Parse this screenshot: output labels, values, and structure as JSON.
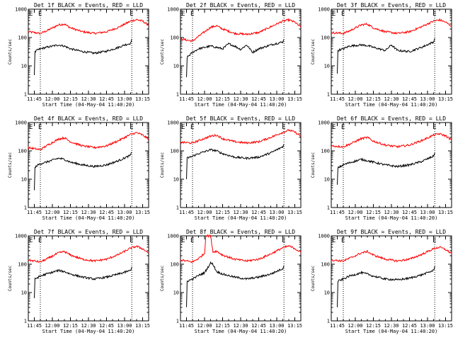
{
  "chart_data": [
    {
      "type": "line",
      "title": "Det 1f BLACK = Events, RED = LLD",
      "xlabel": "Start Time (04-May-04 11:40:20)",
      "ylabel": "Counts/sec",
      "x_tick_labels": [
        "11:45",
        "12:00",
        "12:15",
        "12:30",
        "12:45",
        "13:00",
        "13:15"
      ],
      "y_tick_labels": [
        "1",
        "10",
        "100",
        "1000"
      ],
      "y_scale": "log",
      "ylim": [
        1,
        1000
      ],
      "xlim_minutes": [
        -5,
        95
      ],
      "markers": [
        {
          "label": "E",
          "x": 5
        },
        {
          "label": "E",
          "x": 81
        }
      ],
      "series": [
        {
          "color": "#ff0000",
          "x": [
            -5,
            5,
            10,
            20,
            25,
            30,
            40,
            50,
            60,
            70,
            80,
            85,
            90,
            95
          ],
          "values": [
            160,
            140,
            170,
            280,
            300,
            220,
            160,
            140,
            160,
            230,
            380,
            430,
            380,
            270
          ]
        },
        {
          "color": "#000000",
          "x": [
            0,
            0.5,
            2,
            5,
            10,
            20,
            25,
            30,
            40,
            50,
            60,
            70,
            75,
            80,
            81
          ],
          "values": [
            5,
            30,
            35,
            40,
            45,
            55,
            50,
            40,
            32,
            28,
            33,
            45,
            55,
            62,
            90
          ]
        }
      ]
    },
    {
      "type": "line",
      "title": "Det 2f BLACK = Events, RED = LLD",
      "xlabel": "Start Time (04-May-04 11:40:20)",
      "ylabel": "Counts/sec",
      "x_tick_labels": [
        "11:45",
        "12:00",
        "12:15",
        "12:30",
        "12:45",
        "13:00",
        "13:15"
      ],
      "y_tick_labels": [
        "1",
        "10",
        "100",
        "1000"
      ],
      "y_scale": "log",
      "ylim": [
        1,
        1000
      ],
      "xlim_minutes": [
        -5,
        95
      ],
      "markers": [
        {
          "label": "E",
          "x": 5
        },
        {
          "label": "E",
          "x": 81
        }
      ],
      "series": [
        {
          "color": "#ff0000",
          "x": [
            -5,
            5,
            10,
            20,
            25,
            30,
            40,
            50,
            60,
            70,
            80,
            85,
            90,
            95
          ],
          "values": [
            90,
            75,
            110,
            230,
            260,
            200,
            140,
            130,
            150,
            240,
            380,
            420,
            350,
            230
          ]
        },
        {
          "color": "#000000",
          "x": [
            0,
            0.5,
            5,
            10,
            20,
            25,
            30,
            35,
            40,
            45,
            50,
            55,
            60,
            70,
            80,
            81
          ],
          "values": [
            4,
            20,
            30,
            40,
            50,
            45,
            40,
            60,
            50,
            38,
            55,
            30,
            40,
            55,
            70,
            85
          ]
        }
      ]
    },
    {
      "type": "line",
      "title": "Det 3f BLACK = Events, RED = LLD",
      "xlabel": "Start Time (04-May-04 11:40:20)",
      "ylabel": "Counts/sec",
      "x_tick_labels": [
        "11:45",
        "12:00",
        "12:15",
        "12:30",
        "12:45",
        "13:00",
        "13:15"
      ],
      "y_tick_labels": [
        "1",
        "10",
        "100",
        "1000"
      ],
      "y_scale": "log",
      "ylim": [
        1,
        1000
      ],
      "xlim_minutes": [
        -5,
        95
      ],
      "markers": [
        {
          "label": "E",
          "x": 5
        },
        {
          "label": "E",
          "x": 81
        }
      ],
      "series": [
        {
          "color": "#ff0000",
          "x": [
            -5,
            5,
            10,
            20,
            25,
            30,
            40,
            50,
            60,
            70,
            80,
            85,
            90,
            95
          ],
          "values": [
            150,
            140,
            170,
            280,
            300,
            220,
            160,
            140,
            160,
            240,
            380,
            420,
            350,
            250
          ]
        },
        {
          "color": "#000000",
          "x": [
            0,
            0.5,
            5,
            10,
            20,
            25,
            30,
            40,
            45,
            50,
            60,
            70,
            80,
            81
          ],
          "values": [
            5,
            35,
            40,
            50,
            55,
            52,
            45,
            35,
            55,
            35,
            32,
            45,
            70,
            95
          ]
        }
      ]
    },
    {
      "type": "line",
      "title": "Det 4f BLACK = Events, RED = LLD",
      "xlabel": "Start Time (04-May-04 11:40:20)",
      "ylabel": "Counts/sec",
      "x_tick_labels": [
        "11:45",
        "12:00",
        "12:15",
        "12:30",
        "12:45",
        "13:00",
        "13:15"
      ],
      "y_tick_labels": [
        "1",
        "10",
        "100",
        "1000"
      ],
      "y_scale": "log",
      "ylim": [
        1,
        1000
      ],
      "xlim_minutes": [
        -5,
        95
      ],
      "markers": [
        {
          "label": "E",
          "x": 5
        },
        {
          "label": "E",
          "x": 81
        }
      ],
      "series": [
        {
          "color": "#ff0000",
          "x": [
            -5,
            5,
            10,
            20,
            25,
            30,
            40,
            50,
            60,
            70,
            80,
            85,
            90,
            95
          ],
          "values": [
            130,
            110,
            150,
            260,
            290,
            210,
            150,
            130,
            150,
            230,
            380,
            440,
            360,
            260
          ]
        },
        {
          "color": "#000000",
          "x": [
            0,
            0.5,
            2,
            5,
            10,
            20,
            25,
            30,
            40,
            50,
            60,
            70,
            80,
            81
          ],
          "values": [
            4,
            25,
            30,
            35,
            40,
            55,
            50,
            40,
            32,
            28,
            32,
            45,
            70,
            90
          ]
        }
      ]
    },
    {
      "type": "line",
      "title": "Det 5f BLACK = Events, RED = LLD",
      "xlabel": "Start Time (04-May-04 11:40:20)",
      "ylabel": "Counts/sec",
      "x_tick_labels": [
        "11:45",
        "12:00",
        "12:15",
        "12:30",
        "12:45",
        "13:00",
        "13:15"
      ],
      "y_tick_labels": [
        "1",
        "10",
        "100",
        "1000"
      ],
      "y_scale": "log",
      "ylim": [
        1,
        1000
      ],
      "xlim_minutes": [
        -5,
        95
      ],
      "markers": [
        {
          "label": "E",
          "x": 5
        },
        {
          "label": "E",
          "x": 81
        }
      ],
      "series": [
        {
          "color": "#ff0000",
          "x": [
            -5,
            5,
            10,
            20,
            25,
            30,
            40,
            50,
            60,
            70,
            80,
            85,
            90,
            95
          ],
          "values": [
            200,
            190,
            230,
            330,
            360,
            270,
            210,
            190,
            210,
            300,
            450,
            540,
            460,
            330
          ]
        },
        {
          "color": "#000000",
          "x": [
            0,
            0.5,
            5,
            10,
            20,
            25,
            30,
            40,
            50,
            60,
            70,
            80,
            81
          ],
          "values": [
            10,
            55,
            65,
            80,
            110,
            100,
            80,
            60,
            55,
            60,
            85,
            140,
            170
          ]
        }
      ]
    },
    {
      "type": "line",
      "title": "Det 6f BLACK = Events, RED = LLD",
      "xlabel": "Start Time (04-May-04 11:40:20)",
      "ylabel": "Counts/sec",
      "x_tick_labels": [
        "11:45",
        "12:00",
        "12:15",
        "12:30",
        "12:45",
        "13:00",
        "13:15"
      ],
      "y_tick_labels": [
        "1",
        "10",
        "100",
        "1000"
      ],
      "y_scale": "log",
      "ylim": [
        1,
        1000
      ],
      "xlim_minutes": [
        -5,
        95
      ],
      "markers": [
        {
          "label": "E",
          "x": 5
        },
        {
          "label": "E",
          "x": 81
        }
      ],
      "series": [
        {
          "color": "#ff0000",
          "x": [
            -5,
            5,
            10,
            20,
            25,
            30,
            40,
            50,
            60,
            70,
            80,
            85,
            90,
            95
          ],
          "values": [
            150,
            140,
            170,
            270,
            300,
            220,
            160,
            140,
            160,
            230,
            360,
            400,
            340,
            240
          ]
        },
        {
          "color": "#000000",
          "x": [
            0,
            0.5,
            5,
            10,
            20,
            25,
            30,
            40,
            50,
            60,
            70,
            80,
            81
          ],
          "values": [
            6,
            25,
            32,
            38,
            50,
            45,
            40,
            32,
            28,
            32,
            42,
            65,
            85
          ]
        }
      ]
    },
    {
      "type": "line",
      "title": "Det 7f BLACK = Events, RED = LLD",
      "xlabel": "Start Time (04-May-04 11:40:20)",
      "ylabel": "Counts/sec",
      "x_tick_labels": [
        "11:45",
        "12:00",
        "12:15",
        "12:30",
        "12:45",
        "13:00",
        "13:15"
      ],
      "y_tick_labels": [
        "1",
        "10",
        "100",
        "1000"
      ],
      "y_scale": "log",
      "ylim": [
        1,
        1000
      ],
      "xlim_minutes": [
        -5,
        95
      ],
      "markers": [
        {
          "label": "E",
          "x": 5
        },
        {
          "label": "E",
          "x": 81
        }
      ],
      "series": [
        {
          "color": "#ff0000",
          "x": [
            -5,
            5,
            10,
            20,
            25,
            30,
            40,
            50,
            60,
            70,
            80,
            85,
            90,
            95
          ],
          "values": [
            140,
            120,
            150,
            250,
            280,
            210,
            150,
            130,
            150,
            220,
            370,
            430,
            350,
            250
          ]
        },
        {
          "color": "#000000",
          "x": [
            0,
            0.5,
            5,
            10,
            20,
            25,
            30,
            40,
            50,
            60,
            70,
            80,
            81
          ],
          "values": [
            6,
            30,
            38,
            45,
            60,
            55,
            45,
            35,
            30,
            35,
            45,
            60,
            80
          ]
        }
      ]
    },
    {
      "type": "line",
      "title": "Det 8f BLACK = Events, RED = LLD",
      "xlabel": "Start Time (04-May-04 11:40:20)",
      "ylabel": "Counts/sec",
      "x_tick_labels": [
        "11:45",
        "12:00",
        "12:15",
        "12:30",
        "12:45",
        "13:00",
        "13:15"
      ],
      "y_tick_labels": [
        "1",
        "10",
        "100",
        "1000"
      ],
      "y_scale": "log",
      "ylim": [
        1,
        1000
      ],
      "xlim_minutes": [
        -5,
        95
      ],
      "markers": [
        {
          "label": "E",
          "x": 5
        },
        {
          "label": "E",
          "x": 81
        }
      ],
      "series": [
        {
          "color": "#ff0000",
          "x": [
            -5,
            5,
            10,
            15,
            16,
            20,
            22,
            25,
            30,
            40,
            50,
            60,
            70,
            80,
            85,
            90,
            95
          ],
          "values": [
            140,
            120,
            160,
            240,
            1000,
            1000,
            270,
            290,
            210,
            150,
            130,
            150,
            230,
            380,
            440,
            360,
            260
          ]
        },
        {
          "color": "#000000",
          "x": [
            0,
            0.5,
            5,
            10,
            15,
            20,
            22,
            25,
            30,
            40,
            50,
            60,
            70,
            80,
            81
          ],
          "values": [
            3,
            25,
            30,
            40,
            50,
            110,
            100,
            55,
            45,
            35,
            30,
            35,
            45,
            70,
            90
          ]
        }
      ]
    },
    {
      "type": "line",
      "title": "Det 9f BLACK = Events, RED = LLD",
      "xlabel": "Start Time (04-May-04 11:40:20)",
      "ylabel": "Counts/sec",
      "x_tick_labels": [
        "11:45",
        "12:00",
        "12:15",
        "12:30",
        "12:45",
        "13:00",
        "13:15"
      ],
      "y_tick_labels": [
        "1",
        "10",
        "100",
        "1000"
      ],
      "y_scale": "log",
      "ylim": [
        1,
        1000
      ],
      "xlim_minutes": [
        -5,
        95
      ],
      "markers": [
        {
          "label": "E",
          "x": 5
        },
        {
          "label": "E",
          "x": 81
        }
      ],
      "series": [
        {
          "color": "#ff0000",
          "x": [
            -5,
            5,
            10,
            20,
            25,
            30,
            40,
            50,
            60,
            70,
            80,
            85,
            90,
            95
          ],
          "values": [
            140,
            130,
            160,
            250,
            280,
            210,
            150,
            130,
            150,
            220,
            350,
            400,
            330,
            240
          ]
        },
        {
          "color": "#000000",
          "x": [
            0,
            0.5,
            5,
            10,
            20,
            25,
            30,
            40,
            50,
            60,
            70,
            80,
            81
          ],
          "values": [
            3,
            25,
            30,
            38,
            50,
            45,
            38,
            30,
            28,
            32,
            42,
            60,
            85
          ]
        }
      ]
    }
  ]
}
